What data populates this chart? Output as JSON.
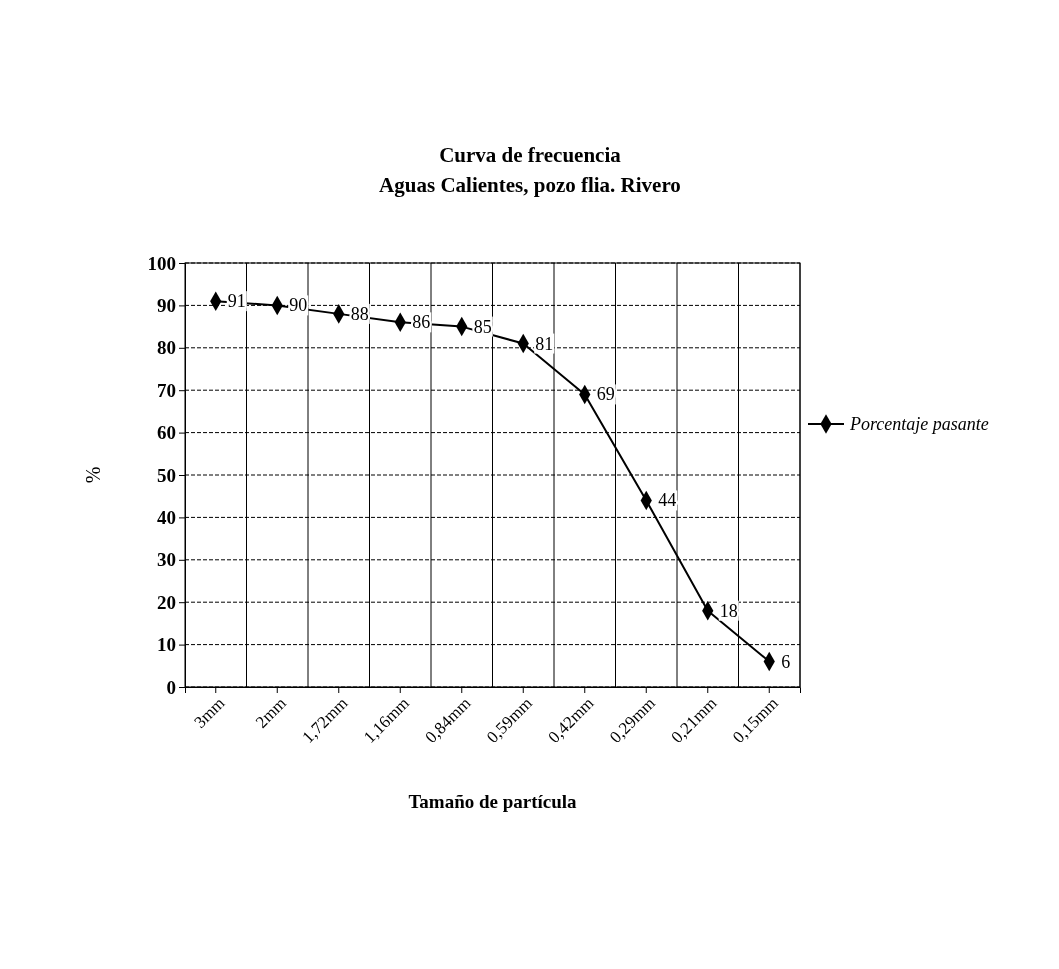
{
  "chart_data": {
    "type": "line",
    "title": "Curva de frecuencia",
    "subtitle": "Aguas Calientes, pozo flia. Rivero",
    "xlabel": "Tamaño de partícula",
    "ylabel": "%",
    "categories": [
      "3mm",
      "2mm",
      "1,72mm",
      "1,16mm",
      "0,84mm",
      "0,59mm",
      "0,42mm",
      "0,29mm",
      "0,21mm",
      "0,15mm"
    ],
    "series": [
      {
        "name": "Porcentaje pasante",
        "color": "#000000",
        "values": [
          91,
          90,
          88,
          86,
          85,
          81,
          69,
          44,
          18,
          6
        ]
      }
    ],
    "ylim": [
      0,
      100
    ],
    "yticks": [
      0,
      10,
      20,
      30,
      40,
      50,
      60,
      70,
      80,
      90,
      100
    ],
    "grid": true,
    "legend": "right",
    "marker": "diamond",
    "data_labels": true
  }
}
